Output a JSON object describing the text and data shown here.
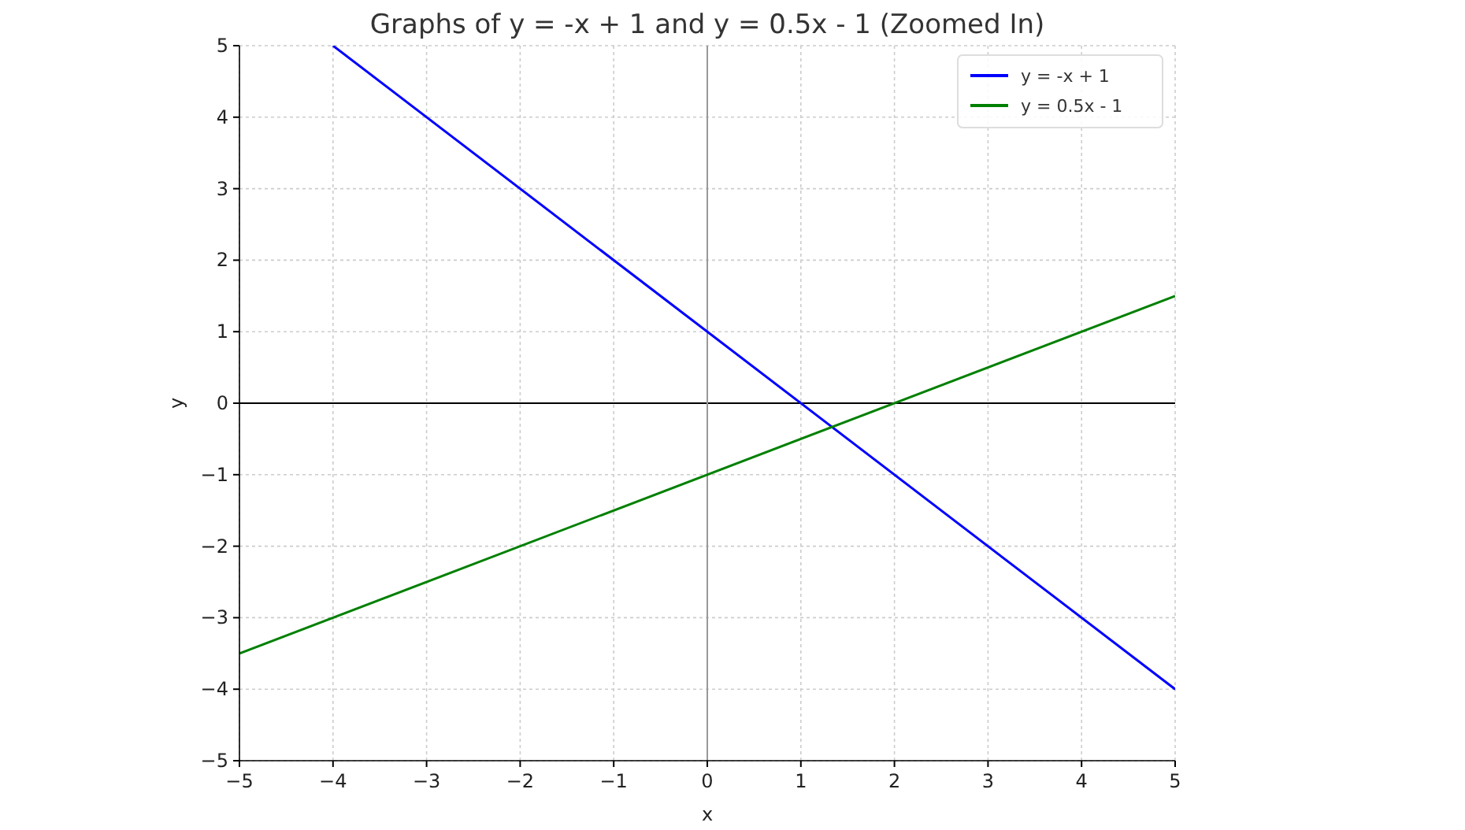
{
  "chart_data": {
    "type": "line",
    "title": "Graphs of y = -x + 1 and y = 0.5x - 1 (Zoomed In)",
    "xlabel": "x",
    "ylabel": "y",
    "series": [
      {
        "name": "y = -x + 1",
        "color": "#0000ff",
        "x": [
          -4,
          5
        ],
        "values": [
          5,
          -4
        ]
      },
      {
        "name": "y = 0.5x - 1",
        "color": "#008000",
        "x": [
          -5,
          5
        ],
        "values": [
          -3.5,
          1.5
        ]
      }
    ],
    "xlim": [
      -5,
      5
    ],
    "ylim": [
      -5,
      5
    ],
    "xticks": [
      {
        "value": -5,
        "label": "−5"
      },
      {
        "value": -4,
        "label": "−4"
      },
      {
        "value": -3,
        "label": "−3"
      },
      {
        "value": -2,
        "label": "−2"
      },
      {
        "value": -1,
        "label": "−1"
      },
      0,
      1,
      2,
      3,
      4,
      5
    ],
    "yticks": [
      {
        "value": -5,
        "label": "−5"
      },
      {
        "value": -4,
        "label": "−4"
      },
      {
        "value": -3,
        "label": "−3"
      },
      {
        "value": -2,
        "label": "−2"
      },
      {
        "value": -1,
        "label": "−1"
      },
      0,
      1,
      2,
      3,
      4,
      5
    ],
    "ref_lines": [
      {
        "axis": "y",
        "value": 0,
        "color": "#000000"
      },
      {
        "axis": "x",
        "value": 0,
        "color": "#999999"
      }
    ],
    "grid": true,
    "legend": "top right",
    "line_style": "solid",
    "marker": "none"
  }
}
